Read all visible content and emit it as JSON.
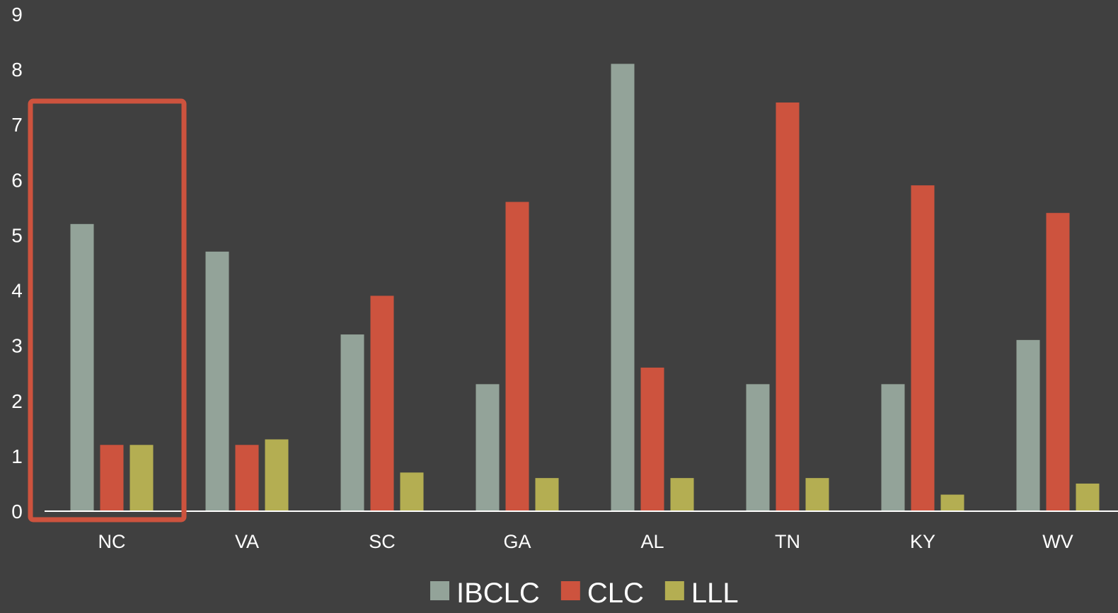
{
  "chart_data": {
    "type": "bar",
    "title": "",
    "xlabel": "",
    "ylabel": "",
    "ylim": [
      0,
      9
    ],
    "yticks": [
      0,
      1,
      2,
      3,
      4,
      5,
      6,
      7,
      8,
      9
    ],
    "categories": [
      "NC",
      "VA",
      "SC",
      "GA",
      "AL",
      "TN",
      "KY",
      "WV"
    ],
    "series": [
      {
        "name": "IBCLC",
        "color": "#93a399",
        "values": [
          5.2,
          4.7,
          3.2,
          2.3,
          8.1,
          2.3,
          2.3,
          3.1
        ]
      },
      {
        "name": "CLC",
        "color": "#cd533e",
        "values": [
          1.2,
          1.2,
          3.9,
          5.6,
          2.6,
          7.4,
          5.9,
          5.4
        ]
      },
      {
        "name": "LLL",
        "color": "#b4ae52",
        "values": [
          1.2,
          1.3,
          0.7,
          0.6,
          0.6,
          0.6,
          0.3,
          0.5
        ]
      }
    ],
    "grid": false,
    "legend_position": "bottom",
    "highlight": {
      "category": "NC",
      "color": "#cd533e"
    }
  }
}
